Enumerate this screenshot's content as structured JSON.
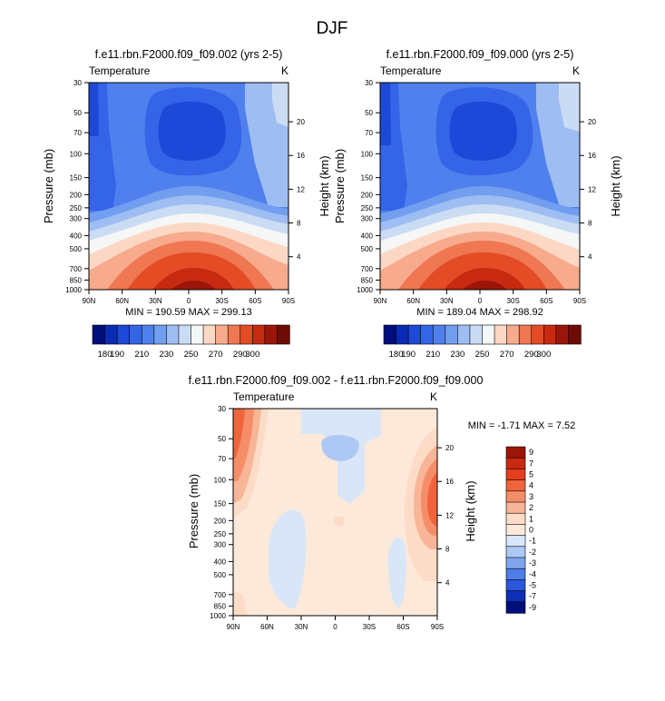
{
  "page_title": "DJF",
  "chart_data": [
    {
      "type": "heatmap",
      "id": "p1",
      "title": "f.e11.rbn.F2000.f09_f09.002 (yrs 2-5)",
      "left_label": "Temperature",
      "right_label": "K",
      "ylabel": "Pressure (mb)",
      "y2label": "Height (km)",
      "pressure_ticks": [
        "30",
        "50",
        "70",
        "100",
        "150",
        "200",
        "250",
        "300",
        "400",
        "500",
        "700",
        "850",
        "1000"
      ],
      "height_ticks": [
        "4",
        "8",
        "12",
        "16",
        "20"
      ],
      "lat_ticks": [
        "90N",
        "60N",
        "30N",
        "0",
        "30S",
        "60S",
        "90S"
      ],
      "stats_text": "MIN = 190.59  MAX = 299.13",
      "min": 190.59,
      "max": 299.13,
      "colorbar": {
        "orientation": "horizontal",
        "levels": [
          180,
          190,
          200,
          210,
          220,
          230,
          240,
          250,
          260,
          270,
          280,
          290,
          300
        ],
        "labels": [
          "180",
          "190",
          "210",
          "230",
          "250",
          "270",
          "290",
          "300"
        ],
        "colors": [
          "#000e7b",
          "#0a2bb4",
          "#1d48d8",
          "#3464e8",
          "#4f80ed",
          "#729ef0",
          "#9ebdf2",
          "#cadcf4",
          "#f5f6f6",
          "#fcd8c4",
          "#f7aa8c",
          "#ef7752",
          "#e44c25",
          "#c72a10",
          "#9c1509",
          "#6e0b05"
        ]
      }
    },
    {
      "type": "heatmap",
      "id": "p2",
      "title": "f.e11.rbn.F2000.f09_f09.000 (yrs 2-5)",
      "left_label": "Temperature",
      "right_label": "K",
      "ylabel": "Pressure (mb)",
      "y2label": "Height (km)",
      "pressure_ticks": [
        "30",
        "50",
        "70",
        "100",
        "150",
        "200",
        "250",
        "300",
        "400",
        "500",
        "700",
        "850",
        "1000"
      ],
      "height_ticks": [
        "4",
        "8",
        "12",
        "16",
        "20"
      ],
      "lat_ticks": [
        "90N",
        "60N",
        "30N",
        "0",
        "30S",
        "60S",
        "90S"
      ],
      "stats_text": "MIN = 189.04  MAX = 298.92",
      "min": 189.04,
      "max": 298.92,
      "colorbar": {
        "orientation": "horizontal",
        "levels": [
          180,
          190,
          200,
          210,
          220,
          230,
          240,
          250,
          260,
          270,
          280,
          290,
          300
        ],
        "labels": [
          "180",
          "190",
          "210",
          "230",
          "250",
          "270",
          "290",
          "300"
        ],
        "colors": [
          "#000e7b",
          "#0a2bb4",
          "#1d48d8",
          "#3464e8",
          "#4f80ed",
          "#729ef0",
          "#9ebdf2",
          "#cadcf4",
          "#f5f6f6",
          "#fcd8c4",
          "#f7aa8c",
          "#ef7752",
          "#e44c25",
          "#c72a10",
          "#9c1509",
          "#6e0b05"
        ]
      }
    },
    {
      "type": "heatmap",
      "id": "p3",
      "title": "f.e11.rbn.F2000.f09_f09.002 - f.e11.rbn.F2000.f09_f09.000",
      "left_label": "Temperature",
      "right_label": "K",
      "ylabel": "Pressure (mb)",
      "y2label": "Height (km)",
      "pressure_ticks": [
        "30",
        "50",
        "70",
        "100",
        "150",
        "200",
        "250",
        "300",
        "400",
        "500",
        "700",
        "850",
        "1000"
      ],
      "height_ticks": [
        "4",
        "8",
        "12",
        "16",
        "20"
      ],
      "lat_ticks": [
        "90N",
        "60N",
        "30N",
        "0",
        "30S",
        "60S",
        "90S"
      ],
      "stats_text": "MIN = -1.71  MAX =  7.52",
      "min": -1.71,
      "max": 7.52,
      "colorbar": {
        "orientation": "vertical",
        "labels": [
          "9",
          "7",
          "5",
          "4",
          "3",
          "2",
          "1",
          "0",
          "-1",
          "-2",
          "-3",
          "-4",
          "-5",
          "-7",
          "-9"
        ],
        "colors": [
          "#9c1509",
          "#c72a10",
          "#e43e1c",
          "#f0643c",
          "#f58e68",
          "#f8b597",
          "#fcdcc7",
          "#fde9da",
          "#d8e6f8",
          "#adc8f4",
          "#7fa5ef",
          "#4f7ee8",
          "#2a57dc",
          "#0e2fb5",
          "#000e7b"
        ]
      }
    }
  ]
}
